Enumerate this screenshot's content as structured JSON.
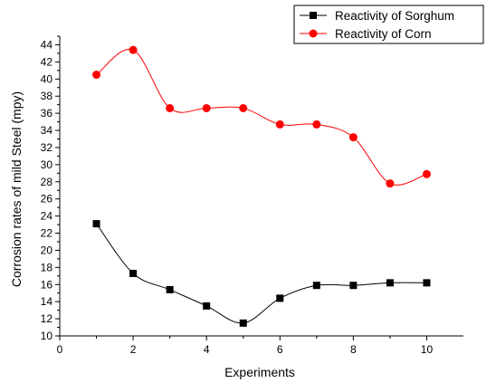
{
  "chart_data": {
    "type": "line",
    "xlabel": "Experiments",
    "ylabel": "Corrosion rates of mild Steel (mpy)",
    "xlim": [
      0,
      11
    ],
    "ylim": [
      10,
      45
    ],
    "x_ticks": [
      0,
      2,
      4,
      6,
      8,
      10
    ],
    "y_ticks": [
      10,
      12,
      14,
      16,
      18,
      20,
      22,
      24,
      26,
      28,
      30,
      32,
      34,
      36,
      38,
      40,
      42,
      44
    ],
    "x": [
      1,
      2,
      3,
      4,
      5,
      6,
      7,
      8,
      9,
      10
    ],
    "series": [
      {
        "name": "Reactivity of Sorghum",
        "marker": "square",
        "color": "#000000",
        "values": [
          23.1,
          17.3,
          15.4,
          13.5,
          11.5,
          14.4,
          15.9,
          15.9,
          16.2,
          16.2
        ]
      },
      {
        "name": "Reactivity of Corn",
        "marker": "circle",
        "color": "#ff0000",
        "values": [
          40.5,
          43.4,
          36.6,
          36.6,
          36.6,
          34.7,
          34.7,
          33.2,
          27.8,
          28.9
        ]
      }
    ],
    "legend_position": "top-right",
    "grid": false
  }
}
